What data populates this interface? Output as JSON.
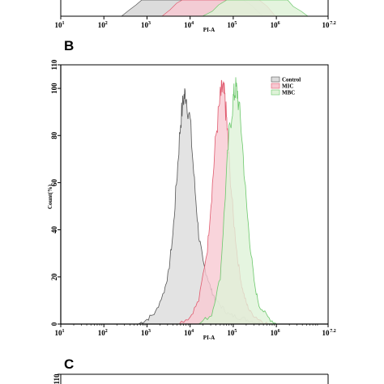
{
  "panels": {
    "b": {
      "letter": "B"
    },
    "c": {
      "letter": "C"
    }
  },
  "top_axis": {
    "tick_labels": [
      "10",
      "10",
      "10",
      "10",
      "10",
      "10",
      "10"
    ],
    "tick_exponents": [
      "1",
      "2",
      "3",
      "4",
      "5",
      "6",
      "7.2"
    ],
    "xlabel": "PI-A"
  },
  "chart_data": {
    "type": "area",
    "title": "",
    "xlabel": "PI-A",
    "ylabel": "Count(%)",
    "xscale": "log",
    "xlim": [
      1,
      7.2
    ],
    "ylim": [
      0,
      110
    ],
    "x_tick_labels": [
      "10",
      "10",
      "10",
      "10",
      "10",
      "10",
      "10"
    ],
    "x_tick_exponents": [
      "1",
      "2",
      "3",
      "4",
      "5",
      "6",
      "7.2"
    ],
    "y_ticks": [
      0,
      20,
      40,
      60,
      80,
      100,
      110
    ],
    "y_tick_labels": [
      "0",
      "20",
      "40",
      "60",
      "80",
      "100",
      "110"
    ],
    "grid": false,
    "legend_position": "top-right",
    "series": [
      {
        "name": "Control",
        "color": "#555555",
        "fill": "#dcdcdc",
        "x": [
          2.8,
          3.0,
          3.2,
          3.4,
          3.5,
          3.6,
          3.7,
          3.78,
          3.85,
          3.9,
          4.0,
          4.1,
          4.2,
          4.3,
          4.4,
          4.5,
          4.6,
          4.75,
          4.9,
          5.1,
          5.3,
          5.5,
          5.7
        ],
        "values": [
          0,
          2,
          5,
          14,
          22,
          38,
          64,
          86,
          96,
          98,
          86,
          60,
          38,
          26,
          20,
          14,
          10,
          7,
          4,
          3,
          2,
          1,
          0
        ]
      },
      {
        "name": "MIC",
        "color": "#e05a6e",
        "fill": "#f7c9d2",
        "x": [
          3.7,
          4.0,
          4.2,
          4.4,
          4.5,
          4.6,
          4.7,
          4.75,
          4.8,
          4.85,
          4.9,
          5.0,
          5.1,
          5.2,
          5.3,
          5.4,
          5.6,
          5.8
        ],
        "values": [
          0,
          3,
          10,
          32,
          55,
          80,
          96,
          100,
          96,
          86,
          70,
          46,
          28,
          16,
          9,
          5,
          2,
          0
        ]
      },
      {
        "name": "MBC",
        "color": "#6cc86c",
        "fill": "#dff2d8",
        "x": [
          4.2,
          4.5,
          4.7,
          4.8,
          4.9,
          5.0,
          5.05,
          5.1,
          5.2,
          5.3,
          5.4,
          5.5,
          5.6,
          5.8,
          6.0
        ],
        "values": [
          0,
          4,
          20,
          50,
          80,
          95,
          100,
          98,
          80,
          52,
          32,
          16,
          8,
          3,
          0
        ]
      }
    ]
  },
  "panel_c_axis": {
    "y_tick_label": "110"
  }
}
